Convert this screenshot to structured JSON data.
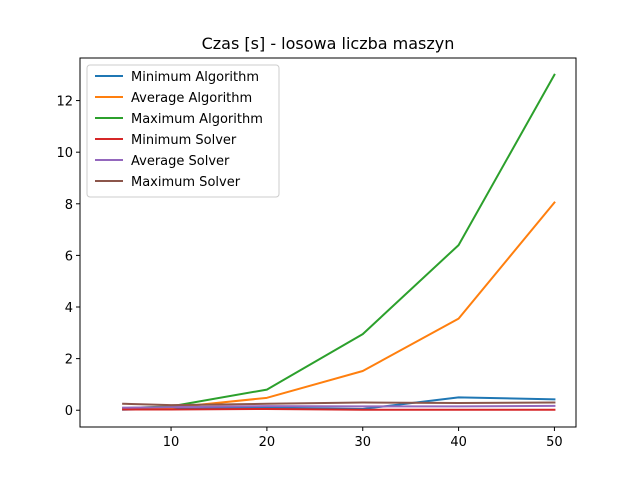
{
  "chart_data": {
    "type": "line",
    "title": "Czas [s] - losowa liczba maszyn",
    "xlabel": "",
    "ylabel": "",
    "x": [
      5,
      10,
      20,
      30,
      40,
      50
    ],
    "xlim": [
      0.5,
      52.25
    ],
    "ylim": [
      -0.65,
      13.65
    ],
    "xticks": [
      10,
      20,
      30,
      40,
      50
    ],
    "yticks": [
      0,
      2,
      4,
      6,
      8,
      10,
      12
    ],
    "grid": false,
    "legend_position": "top-left",
    "series": [
      {
        "name": "Minimum Algorithm",
        "color": "#1f77b4",
        "values": [
          0.02,
          0.05,
          0.1,
          0.05,
          0.5,
          0.42
        ]
      },
      {
        "name": "Average Algorithm",
        "color": "#ff7f0e",
        "values": [
          0.05,
          0.1,
          0.48,
          1.52,
          3.55,
          8.05
        ]
      },
      {
        "name": "Maximum Algorithm",
        "color": "#2ca02c",
        "values": [
          0.08,
          0.15,
          0.8,
          2.95,
          6.4,
          13.0
        ]
      },
      {
        "name": "Minimum Solver",
        "color": "#d62728",
        "values": [
          0.03,
          0.03,
          0.05,
          0.02,
          0.02,
          0.02
        ]
      },
      {
        "name": "Average Solver",
        "color": "#9467bd",
        "values": [
          0.1,
          0.12,
          0.16,
          0.15,
          0.15,
          0.17
        ]
      },
      {
        "name": "Maximum Solver",
        "color": "#8c564b",
        "values": [
          0.25,
          0.2,
          0.25,
          0.3,
          0.28,
          0.3
        ]
      }
    ]
  }
}
